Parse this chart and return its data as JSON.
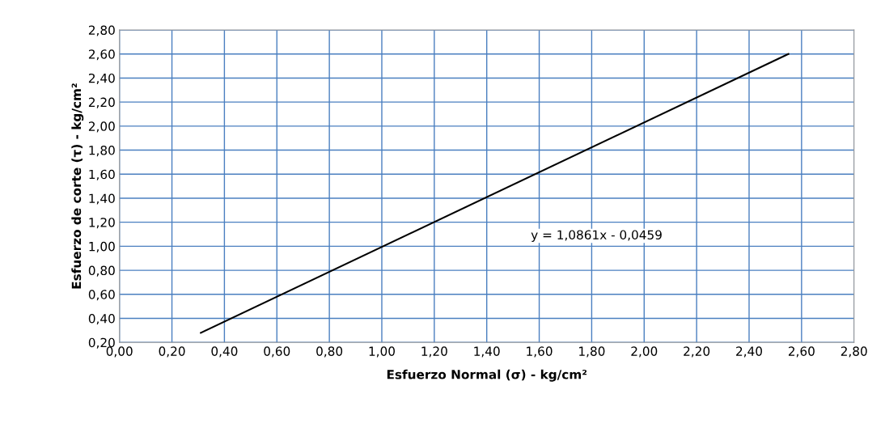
{
  "chart_data": {
    "type": "line",
    "xlabel": "Esfuerzo Normal (σ) - kg/cm²",
    "ylabel": "Esfuerzo de corte (τ) - kg/cm²",
    "x": [
      0.31,
      2.55
    ],
    "series": [
      {
        "color": "#000000",
        "values": [
          0.28,
          2.6
        ]
      }
    ],
    "xlim": [
      0.0,
      2.8
    ],
    "xticks": [
      {
        "value": 0.0,
        "label": "0,00"
      },
      {
        "value": 0.2,
        "label": "0,20"
      },
      {
        "value": 0.4,
        "label": "0,40"
      },
      {
        "value": 0.6,
        "label": "0,60"
      },
      {
        "value": 0.8,
        "label": "0,80"
      },
      {
        "value": 1.0,
        "label": "1,00"
      },
      {
        "value": 1.2,
        "label": "1,20"
      },
      {
        "value": 1.4,
        "label": "1,40"
      },
      {
        "value": 1.6,
        "label": "1,60"
      },
      {
        "value": 1.8,
        "label": "1,80"
      },
      {
        "value": 2.0,
        "label": "2,00"
      },
      {
        "value": 2.2,
        "label": "2,20"
      },
      {
        "value": 2.4,
        "label": "2,40"
      },
      {
        "value": 2.6,
        "label": "2,60"
      },
      {
        "value": 2.8,
        "label": "2,80"
      }
    ],
    "ylim": [
      0.2,
      2.8
    ],
    "yticks": [
      {
        "value": 0.2,
        "label": "0,20"
      },
      {
        "value": 0.4,
        "label": "0,40"
      },
      {
        "value": 0.6,
        "label": "0,60"
      },
      {
        "value": 0.8,
        "label": "0,80"
      },
      {
        "value": 1.0,
        "label": "1,00"
      },
      {
        "value": 1.2,
        "label": "1,20"
      },
      {
        "value": 1.4,
        "label": "1,40"
      },
      {
        "value": 1.6,
        "label": "1,60"
      },
      {
        "value": 1.8,
        "label": "1,80"
      },
      {
        "value": 2.0,
        "label": "2,00"
      },
      {
        "value": 2.2,
        "label": "2,20"
      },
      {
        "value": 2.4,
        "label": "2,40"
      },
      {
        "value": 2.6,
        "label": "2,60"
      },
      {
        "value": 2.8,
        "label": "2,80"
      }
    ],
    "annotations": [
      "y = 1,0861x - 0,0459"
    ],
    "grid": true,
    "marker": "none",
    "line_style": "solid"
  }
}
